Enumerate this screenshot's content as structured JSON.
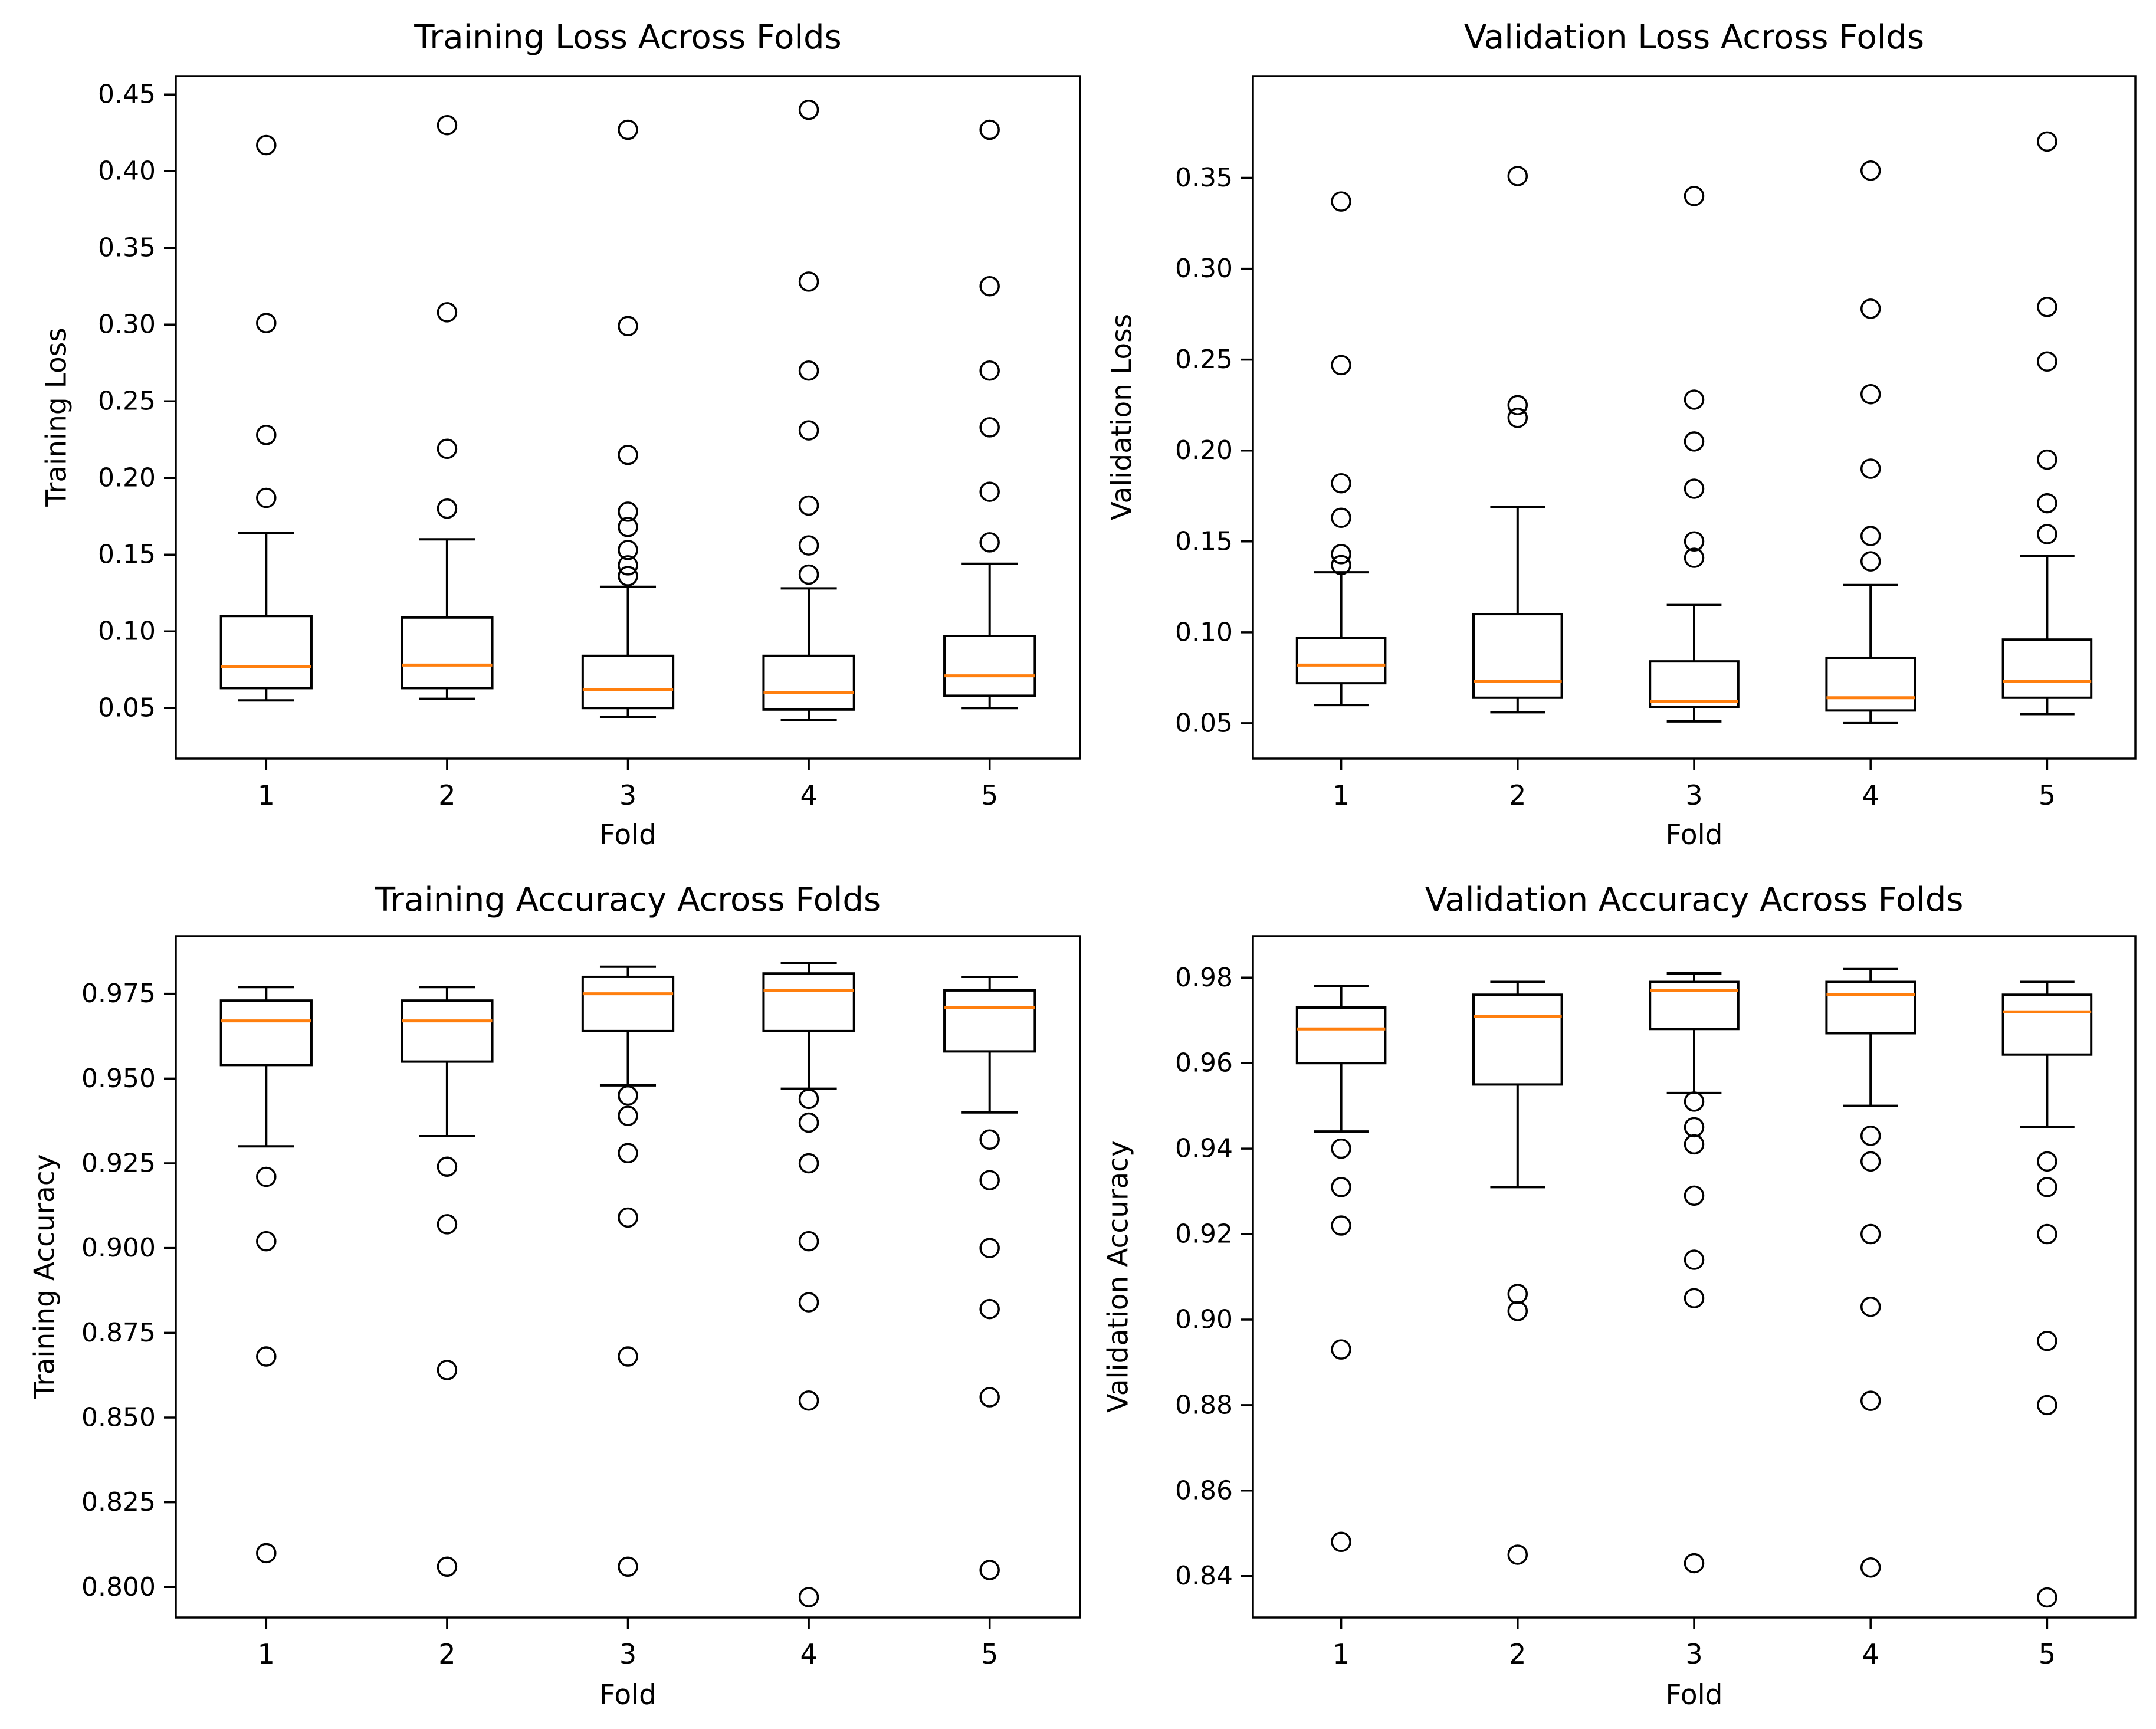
{
  "styles": {
    "background": "#ffffff",
    "line_color": "#000000",
    "median_color": "#ff7f0e",
    "text_color": "#000000"
  },
  "chart_data": [
    {
      "type": "boxplot",
      "title": "Training Loss Across Folds",
      "xlabel": "Fold",
      "ylabel": "Training Loss",
      "grid": false,
      "legend": null,
      "xtick_labels": [
        "1",
        "2",
        "3",
        "4",
        "5"
      ],
      "yticks": [
        0.05,
        0.1,
        0.15,
        0.2,
        0.25,
        0.3,
        0.35,
        0.4,
        0.45
      ],
      "ytick_labels": [
        "0.05",
        "0.10",
        "0.15",
        "0.20",
        "0.25",
        "0.30",
        "0.35",
        "0.40",
        "0.45"
      ],
      "ylim": [
        0.017,
        0.462
      ],
      "boxes": [
        {
          "fold": "1",
          "whislo": 0.055,
          "q1": 0.063,
          "med": 0.077,
          "q3": 0.11,
          "whishi": 0.164,
          "fliers": [
            0.187,
            0.228,
            0.301,
            0.417
          ]
        },
        {
          "fold": "2",
          "whislo": 0.056,
          "q1": 0.063,
          "med": 0.078,
          "q3": 0.109,
          "whishi": 0.16,
          "fliers": [
            0.18,
            0.219,
            0.308,
            0.43
          ]
        },
        {
          "fold": "3",
          "whislo": 0.044,
          "q1": 0.05,
          "med": 0.062,
          "q3": 0.084,
          "whishi": 0.129,
          "fliers": [
            0.136,
            0.143,
            0.153,
            0.168,
            0.178,
            0.215,
            0.299,
            0.427
          ]
        },
        {
          "fold": "4",
          "whislo": 0.042,
          "q1": 0.049,
          "med": 0.06,
          "q3": 0.084,
          "whishi": 0.128,
          "fliers": [
            0.137,
            0.156,
            0.182,
            0.231,
            0.27,
            0.328,
            0.44
          ]
        },
        {
          "fold": "5",
          "whislo": 0.05,
          "q1": 0.058,
          "med": 0.071,
          "q3": 0.097,
          "whishi": 0.144,
          "fliers": [
            0.158,
            0.191,
            0.233,
            0.27,
            0.325,
            0.427
          ]
        }
      ]
    },
    {
      "type": "boxplot",
      "title": "Validation Loss Across Folds",
      "xlabel": "Fold",
      "ylabel": "Validation Loss",
      "grid": false,
      "legend": null,
      "xtick_labels": [
        "1",
        "2",
        "3",
        "4",
        "5"
      ],
      "yticks": [
        0.05,
        0.1,
        0.15,
        0.2,
        0.25,
        0.3,
        0.35
      ],
      "ytick_labels": [
        "0.05",
        "0.10",
        "0.15",
        "0.20",
        "0.25",
        "0.30",
        "0.35"
      ],
      "ylim": [
        0.0305,
        0.406
      ],
      "boxes": [
        {
          "fold": "1",
          "whislo": 0.06,
          "q1": 0.072,
          "med": 0.082,
          "q3": 0.097,
          "whishi": 0.133,
          "fliers": [
            0.137,
            0.143,
            0.163,
            0.182,
            0.247,
            0.337
          ]
        },
        {
          "fold": "2",
          "whislo": 0.056,
          "q1": 0.064,
          "med": 0.073,
          "q3": 0.11,
          "whishi": 0.169,
          "fliers": [
            0.218,
            0.225,
            0.351
          ]
        },
        {
          "fold": "3",
          "whislo": 0.051,
          "q1": 0.059,
          "med": 0.062,
          "q3": 0.084,
          "whishi": 0.115,
          "fliers": [
            0.141,
            0.15,
            0.179,
            0.205,
            0.228,
            0.34
          ]
        },
        {
          "fold": "4",
          "whislo": 0.05,
          "q1": 0.057,
          "med": 0.064,
          "q3": 0.086,
          "whishi": 0.126,
          "fliers": [
            0.139,
            0.153,
            0.19,
            0.231,
            0.278,
            0.354
          ]
        },
        {
          "fold": "5",
          "whislo": 0.055,
          "q1": 0.064,
          "med": 0.073,
          "q3": 0.096,
          "whishi": 0.142,
          "fliers": [
            0.154,
            0.171,
            0.195,
            0.249,
            0.279,
            0.37
          ]
        }
      ]
    },
    {
      "type": "boxplot",
      "title": "Training Accuracy Across Folds",
      "xlabel": "Fold",
      "ylabel": "Training Accuracy",
      "grid": false,
      "legend": null,
      "xtick_labels": [
        "1",
        "2",
        "3",
        "4",
        "5"
      ],
      "yticks": [
        0.8,
        0.825,
        0.85,
        0.875,
        0.9,
        0.925,
        0.95,
        0.975
      ],
      "ytick_labels": [
        "0.800",
        "0.825",
        "0.850",
        "0.875",
        "0.900",
        "0.925",
        "0.950",
        "0.975"
      ],
      "ylim": [
        0.791,
        0.992
      ],
      "boxes": [
        {
          "fold": "1",
          "whislo": 0.93,
          "q1": 0.954,
          "med": 0.967,
          "q3": 0.973,
          "whishi": 0.977,
          "fliers": [
            0.921,
            0.902,
            0.868,
            0.81
          ]
        },
        {
          "fold": "2",
          "whislo": 0.933,
          "q1": 0.955,
          "med": 0.967,
          "q3": 0.973,
          "whishi": 0.977,
          "fliers": [
            0.924,
            0.907,
            0.864,
            0.806
          ]
        },
        {
          "fold": "3",
          "whislo": 0.948,
          "q1": 0.964,
          "med": 0.975,
          "q3": 0.98,
          "whishi": 0.983,
          "fliers": [
            0.945,
            0.939,
            0.928,
            0.909,
            0.868,
            0.806
          ]
        },
        {
          "fold": "4",
          "whislo": 0.947,
          "q1": 0.964,
          "med": 0.976,
          "q3": 0.981,
          "whishi": 0.984,
          "fliers": [
            0.944,
            0.937,
            0.925,
            0.902,
            0.884,
            0.855,
            0.797
          ]
        },
        {
          "fold": "5",
          "whislo": 0.94,
          "q1": 0.958,
          "med": 0.971,
          "q3": 0.976,
          "whishi": 0.98,
          "fliers": [
            0.932,
            0.92,
            0.9,
            0.882,
            0.856,
            0.805
          ]
        }
      ]
    },
    {
      "type": "boxplot",
      "title": "Validation Accuracy Across Folds",
      "xlabel": "Fold",
      "ylabel": "Validation Accuracy",
      "grid": false,
      "legend": null,
      "xtick_labels": [
        "1",
        "2",
        "3",
        "4",
        "5"
      ],
      "yticks": [
        0.84,
        0.86,
        0.88,
        0.9,
        0.92,
        0.94,
        0.96,
        0.98
      ],
      "ytick_labels": [
        "0.84",
        "0.86",
        "0.88",
        "0.90",
        "0.92",
        "0.94",
        "0.96",
        "0.98"
      ],
      "ylim": [
        0.8303,
        0.9897
      ],
      "boxes": [
        {
          "fold": "1",
          "whislo": 0.944,
          "q1": 0.96,
          "med": 0.968,
          "q3": 0.973,
          "whishi": 0.978,
          "fliers": [
            0.94,
            0.931,
            0.922,
            0.893,
            0.848
          ]
        },
        {
          "fold": "2",
          "whislo": 0.931,
          "q1": 0.955,
          "med": 0.971,
          "q3": 0.976,
          "whishi": 0.979,
          "fliers": [
            0.906,
            0.902,
            0.845
          ]
        },
        {
          "fold": "3",
          "whislo": 0.953,
          "q1": 0.968,
          "med": 0.977,
          "q3": 0.979,
          "whishi": 0.981,
          "fliers": [
            0.951,
            0.945,
            0.941,
            0.929,
            0.914,
            0.905,
            0.843
          ]
        },
        {
          "fold": "4",
          "whislo": 0.95,
          "q1": 0.967,
          "med": 0.976,
          "q3": 0.979,
          "whishi": 0.982,
          "fliers": [
            0.943,
            0.937,
            0.92,
            0.903,
            0.881,
            0.842
          ]
        },
        {
          "fold": "5",
          "whislo": 0.945,
          "q1": 0.962,
          "med": 0.972,
          "q3": 0.976,
          "whishi": 0.979,
          "fliers": [
            0.937,
            0.931,
            0.92,
            0.895,
            0.88,
            0.835
          ]
        }
      ]
    }
  ]
}
